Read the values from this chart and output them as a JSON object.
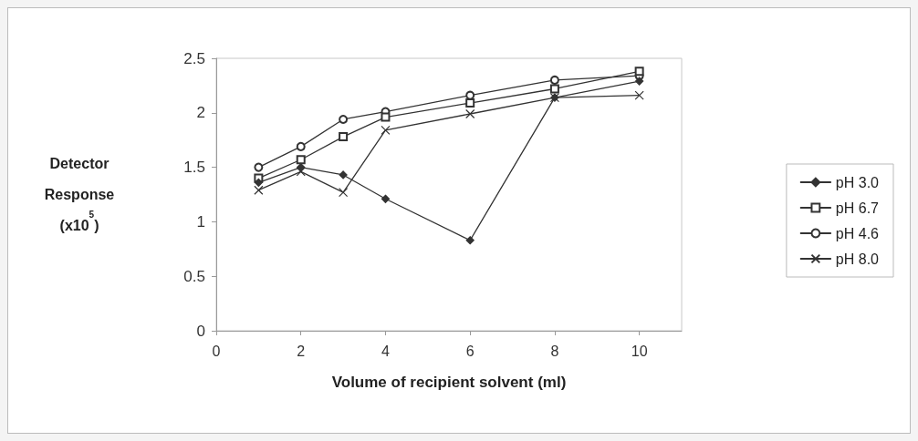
{
  "chart_data": {
    "type": "line",
    "xlabel": "Volume of recipient solvent (ml)",
    "ylabel": "Detector Response (x10$^{5}$)",
    "x": [
      1,
      2,
      3,
      4,
      6,
      8,
      10
    ],
    "xlim": [
      0,
      11
    ],
    "xticks": [
      0,
      2,
      4,
      6,
      8,
      10
    ],
    "ylim": [
      0,
      2.5
    ],
    "yticks": [
      0,
      0.5,
      1,
      1.5,
      2,
      2.5
    ],
    "grid": false,
    "legend": "right",
    "line_style": "solid",
    "series": [
      {
        "name": "pH 3.0",
        "color": "#333333",
        "marker": "diamond",
        "values": [
          1.36,
          1.5,
          1.43,
          1.21,
          0.83,
          2.14,
          2.29
        ]
      },
      {
        "name": "pH 6.7",
        "color": "#333333",
        "marker": "square",
        "values": [
          1.4,
          1.57,
          1.78,
          1.96,
          2.09,
          2.22,
          2.38
        ]
      },
      {
        "name": "pH 4.6",
        "color": "#333333",
        "marker": "circle",
        "values": [
          1.5,
          1.69,
          1.94,
          2.01,
          2.16,
          2.3,
          2.34
        ]
      },
      {
        "name": "pH 8.0",
        "color": "#333333",
        "marker": "cross",
        "values": [
          1.29,
          1.46,
          1.27,
          1.84,
          1.99,
          2.14,
          2.16
        ]
      }
    ]
  }
}
